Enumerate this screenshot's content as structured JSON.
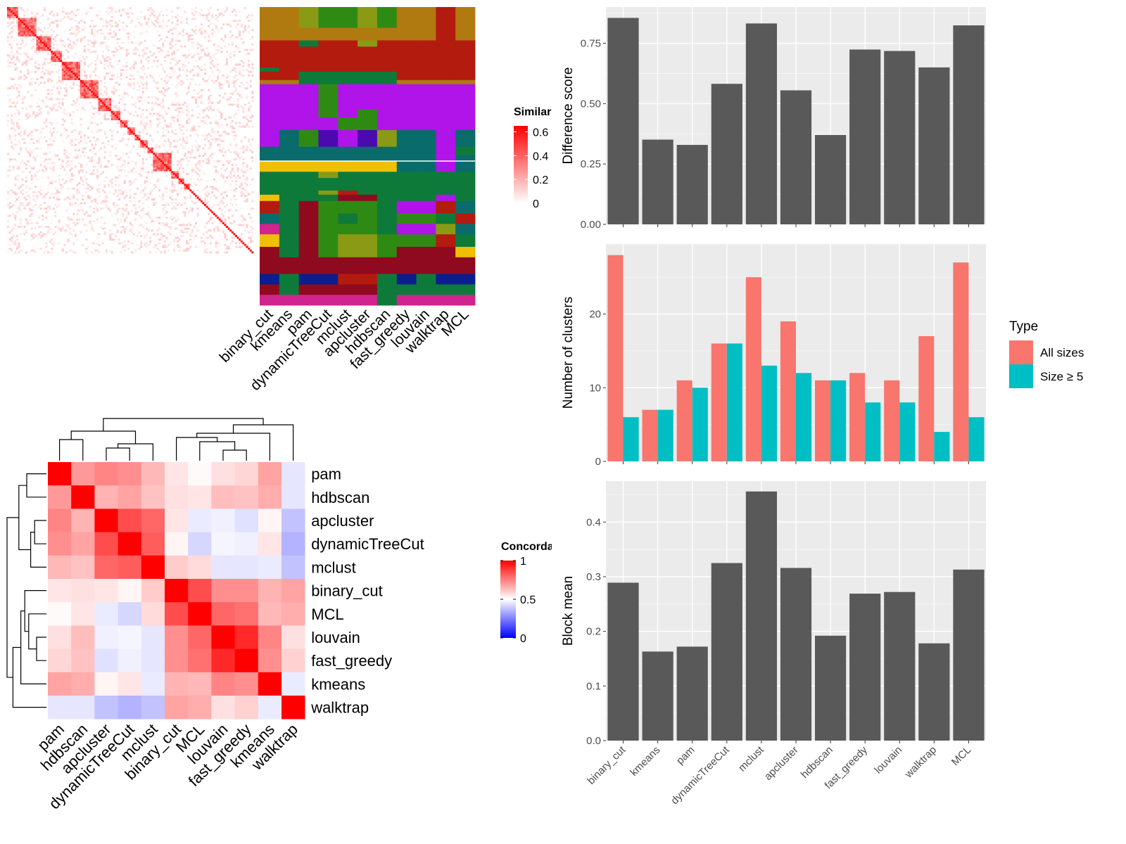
{
  "chart_data": [
    {
      "id": "similarity-heatmap",
      "type": "heatmap",
      "title": "",
      "legend_title": "Similarity",
      "legend_ticks": [
        0,
        0.2,
        0.4,
        0.6
      ],
      "colors": {
        "low": "#ffffff",
        "high": "#ff0000"
      },
      "block_sizes": [
        6,
        10,
        8,
        6,
        10,
        10,
        7,
        5,
        4,
        4,
        3,
        4,
        3,
        10,
        4,
        3,
        3,
        1,
        1,
        1,
        1,
        1,
        1,
        1,
        1,
        1,
        1,
        1,
        1,
        1,
        1,
        1,
        1,
        1,
        1,
        1,
        1,
        1,
        1,
        1,
        1,
        1,
        1,
        1,
        1,
        1,
        1,
        1,
        1,
        1,
        1,
        1
      ]
    },
    {
      "id": "cluster-assignment-heatmap",
      "type": "heatmap",
      "columns": [
        "binary_cut",
        "kmeans",
        "pam",
        "dynamicTreeCut",
        "mclust",
        "apcluster",
        "hdbscan",
        "fast_greedy",
        "louvain",
        "walktrap",
        "MCL"
      ],
      "palette": [
        "#b07a10",
        "#b31b0f",
        "#0e7a3a",
        "#b014e8",
        "#0a6b6b",
        "#f0c000",
        "#2f8a14",
        "#8f0a1e",
        "#4a0ab0",
        "#0a1e8f",
        "#d0248f",
        "#8a9a14"
      ]
    },
    {
      "id": "difference-score",
      "type": "bar",
      "categories": [
        "binary_cut",
        "kmeans",
        "pam",
        "dynamicTreeCut",
        "mclust",
        "apcluster",
        "hdbscan",
        "fast_greedy",
        "louvain",
        "walktrap",
        "MCL"
      ],
      "values": [
        0.855,
        0.351,
        0.329,
        0.582,
        0.832,
        0.555,
        0.37,
        0.724,
        0.718,
        0.65,
        0.824
      ],
      "xlabel": "",
      "ylabel": "Difference score",
      "ylim": [
        0,
        0.9
      ],
      "yticks": [
        "0.00",
        "0.25",
        "0.50",
        "0.75"
      ],
      "grid": true
    },
    {
      "id": "number-of-clusters",
      "type": "bar",
      "categories": [
        "binary_cut",
        "kmeans",
        "pam",
        "dynamicTreeCut",
        "mclust",
        "apcluster",
        "hdbscan",
        "fast_greedy",
        "louvain",
        "walktrap",
        "MCL"
      ],
      "series": [
        {
          "name": "All sizes",
          "color": "#f8766d",
          "values": [
            28,
            7,
            11,
            16,
            25,
            19,
            11,
            12,
            11,
            17,
            27
          ]
        },
        {
          "name": "Size ≥ 5",
          "color": "#00bfc4",
          "values": [
            6,
            7,
            10,
            16,
            13,
            12,
            11,
            8,
            8,
            4,
            6
          ]
        }
      ],
      "ylabel": "Number of clusters",
      "ylim": [
        0,
        29.5
      ],
      "yticks": [
        "0",
        "10",
        "20"
      ],
      "legend_title": "Type",
      "legend_position": "right",
      "grid": true
    },
    {
      "id": "block-mean",
      "type": "bar",
      "categories": [
        "binary_cut",
        "kmeans",
        "pam",
        "dynamicTreeCut",
        "mclust",
        "apcluster",
        "hdbscan",
        "fast_greedy",
        "louvain",
        "walktrap",
        "MCL"
      ],
      "values": [
        0.289,
        0.163,
        0.172,
        0.325,
        0.456,
        0.316,
        0.192,
        0.269,
        0.272,
        0.178,
        0.313
      ],
      "ylabel": "Block mean",
      "ylim": [
        0,
        0.475
      ],
      "yticks": [
        "0.0",
        "0.1",
        "0.2",
        "0.3",
        "0.4"
      ],
      "grid": true
    },
    {
      "id": "concordance-heatmap",
      "type": "heatmap",
      "rows": [
        "pam",
        "hdbscan",
        "apcluster",
        "dynamicTreeCut",
        "mclust",
        "binary_cut",
        "MCL",
        "louvain",
        "fast_greedy",
        "kmeans",
        "walktrap"
      ],
      "columns": [
        "pam",
        "hdbscan",
        "apcluster",
        "dynamicTreeCut",
        "mclust",
        "binary_cut",
        "MCL",
        "louvain",
        "fast_greedy",
        "kmeans",
        "walktrap"
      ],
      "values": [
        [
          1.0,
          0.7,
          0.74,
          0.72,
          0.64,
          0.55,
          0.51,
          0.56,
          0.58,
          0.68,
          0.45
        ],
        [
          0.7,
          1.0,
          0.65,
          0.68,
          0.62,
          0.56,
          0.55,
          0.63,
          0.62,
          0.66,
          0.45
        ],
        [
          0.74,
          0.65,
          1.0,
          0.85,
          0.8,
          0.55,
          0.46,
          0.47,
          0.44,
          0.52,
          0.38
        ],
        [
          0.72,
          0.68,
          0.85,
          1.0,
          0.82,
          0.52,
          0.42,
          0.48,
          0.47,
          0.55,
          0.35
        ],
        [
          0.64,
          0.62,
          0.8,
          0.82,
          1.0,
          0.6,
          0.57,
          0.45,
          0.45,
          0.46,
          0.38
        ],
        [
          0.55,
          0.56,
          0.55,
          0.52,
          0.6,
          1.0,
          0.85,
          0.72,
          0.72,
          0.65,
          0.68
        ],
        [
          0.51,
          0.55,
          0.46,
          0.42,
          0.57,
          0.85,
          1.0,
          0.8,
          0.78,
          0.64,
          0.66
        ],
        [
          0.56,
          0.63,
          0.47,
          0.48,
          0.45,
          0.72,
          0.8,
          1.0,
          0.92,
          0.74,
          0.56
        ],
        [
          0.58,
          0.62,
          0.44,
          0.47,
          0.45,
          0.72,
          0.78,
          0.92,
          1.0,
          0.72,
          0.59
        ],
        [
          0.68,
          0.66,
          0.52,
          0.55,
          0.46,
          0.65,
          0.64,
          0.74,
          0.72,
          1.0,
          0.46
        ],
        [
          0.45,
          0.45,
          0.38,
          0.35,
          0.38,
          0.68,
          0.66,
          0.56,
          0.59,
          0.46,
          1.0
        ]
      ],
      "legend_title": "Concordance",
      "legend_ticks": [
        "0",
        "0.5",
        "1"
      ],
      "colors": {
        "low": "#0000ff",
        "mid": "#ffffff",
        "high": "#ff0000"
      }
    }
  ]
}
